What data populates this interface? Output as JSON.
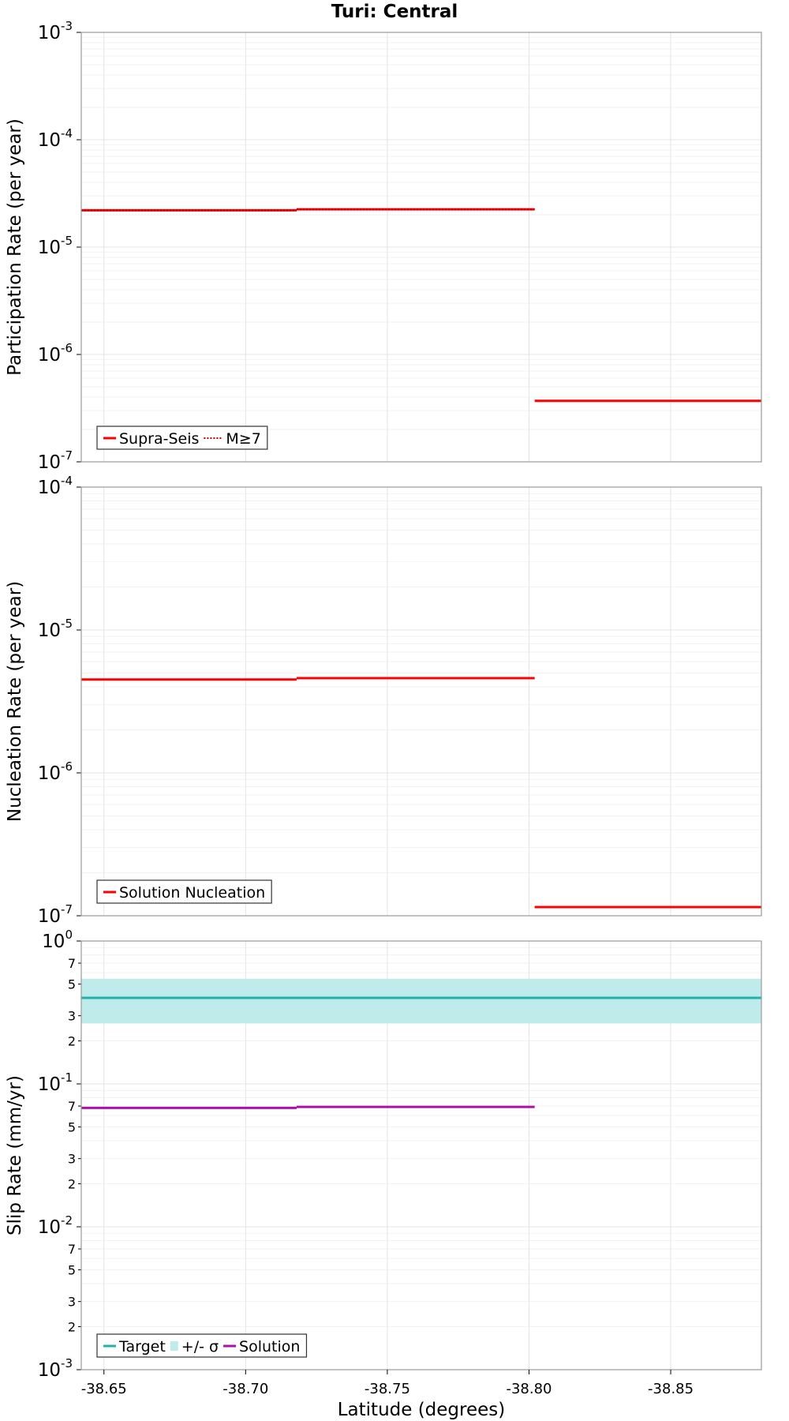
{
  "title": "Turi: Central",
  "chart_data": [
    {
      "type": "line",
      "step": true,
      "ylabel": "Participation Rate (per year)",
      "yscale": "log",
      "ylim": [
        1e-07,
        0.001
      ],
      "xlim": [
        -38.642,
        -38.882
      ],
      "x_inverted": true,
      "grid": true,
      "legend_position": "bottom-left",
      "series": [
        {
          "name": "Supra-Seis",
          "color": "#ff0000",
          "dash": "solid",
          "segments": [
            {
              "x": [
                -38.642,
                -38.718
              ],
              "y": 2.2e-05
            },
            {
              "x": [
                -38.718,
                -38.802
              ],
              "y": 2.25e-05
            },
            {
              "x": [
                -38.802,
                -38.882
              ],
              "y": 3.7e-07
            }
          ]
        },
        {
          "name": "M≥7",
          "color": "#ff0000",
          "dash": "dotted",
          "segments": [
            {
              "x": [
                -38.642,
                -38.718
              ],
              "y": 2.2e-05
            },
            {
              "x": [
                -38.718,
                -38.802
              ],
              "y": 2.25e-05
            }
          ]
        }
      ]
    },
    {
      "type": "line",
      "step": true,
      "ylabel": "Nucleation Rate (per year)",
      "yscale": "log",
      "ylim": [
        1e-07,
        0.0001
      ],
      "xlim": [
        -38.642,
        -38.882
      ],
      "x_inverted": true,
      "grid": true,
      "legend_position": "bottom-left",
      "series": [
        {
          "name": "Solution Nucleation",
          "color": "#ff0000",
          "dash": "solid",
          "segments": [
            {
              "x": [
                -38.642,
                -38.718
              ],
              "y": 4.5e-06
            },
            {
              "x": [
                -38.718,
                -38.802
              ],
              "y": 4.6e-06
            },
            {
              "x": [
                -38.802,
                -38.882
              ],
              "y": 1.15e-07
            }
          ]
        }
      ]
    },
    {
      "type": "line",
      "step": true,
      "ylabel": "Slip Rate (mm/yr)",
      "xlabel": "Latitude (degrees)",
      "yscale": "log",
      "ylim": [
        0.001,
        1
      ],
      "xlim": [
        -38.642,
        -38.882
      ],
      "x_inverted": true,
      "xticks": [
        -38.65,
        -38.7,
        -38.75,
        -38.8,
        -38.85
      ],
      "xtick_labels": [
        "-38.65",
        "-38.70",
        "-38.75",
        "-38.80",
        "-38.85"
      ],
      "minor_tick_labels": [
        "2",
        "3",
        "5",
        "7"
      ],
      "grid": true,
      "legend_position": "bottom-left",
      "series": [
        {
          "name": "Target",
          "color": "#20b2aa",
          "dash": "solid",
          "segments": [
            {
              "x": [
                -38.642,
                -38.882
              ],
              "y": 0.4
            }
          ]
        },
        {
          "name": "+/- σ",
          "color": "#bfecea",
          "kind": "band",
          "band": {
            "x": [
              -38.642,
              -38.882
            ],
            "low": 0.265,
            "high": 0.545
          }
        },
        {
          "name": "Solution",
          "color": "#aa10aa",
          "dash": "solid",
          "segments": [
            {
              "x": [
                -38.642,
                -38.718
              ],
              "y": 0.068
            },
            {
              "x": [
                -38.718,
                -38.802
              ],
              "y": 0.069
            }
          ]
        }
      ]
    }
  ]
}
